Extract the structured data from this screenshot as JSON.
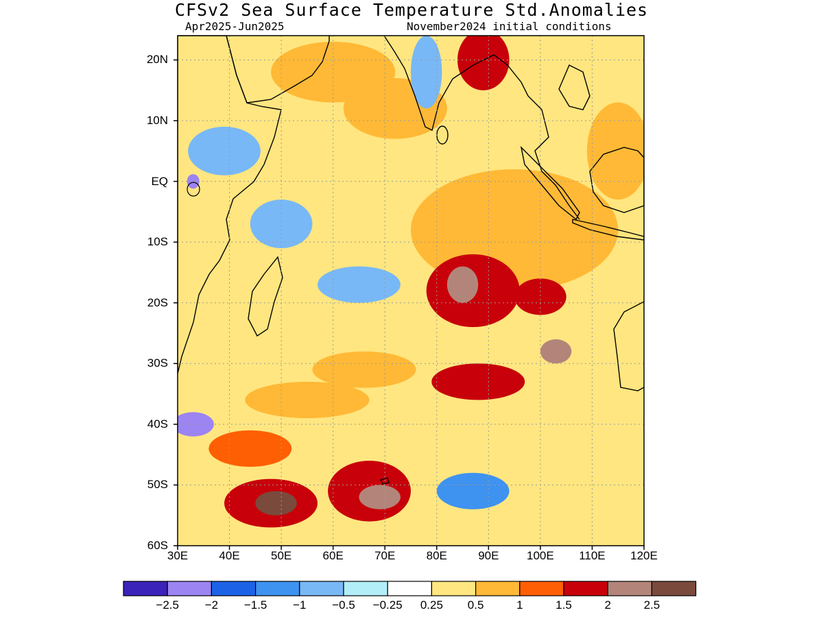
{
  "title": "CFSv2 Sea Surface Temperature Std.Anomalies",
  "subtitle_left": "Apr2025-Jun2025",
  "subtitle_right": "November2024 initial conditions",
  "map": {
    "region": "Indian Ocean",
    "lon_range": [
      30,
      120
    ],
    "lat_range": [
      -60,
      24
    ],
    "grid": "dotted"
  },
  "y_ticks": [
    "20N",
    "10N",
    "EQ",
    "10S",
    "20S",
    "30S",
    "40S",
    "50S",
    "60S"
  ],
  "x_ticks": [
    "30E",
    "40E",
    "50E",
    "60E",
    "70E",
    "80E",
    "90E",
    "100E",
    "110E",
    "120E"
  ],
  "colorbar": {
    "colors": [
      "#3b22b8",
      "#9c84f2",
      "#1c62e6",
      "#3e92f0",
      "#78b8f6",
      "#b2eef8",
      "#ffffff",
      "#ffe680",
      "#ffb936",
      "#ff5f04",
      "#c8000a",
      "#b3857a",
      "#7a4a3c"
    ],
    "labels": [
      "-2.5",
      "-2",
      "-1.5",
      "-1",
      "-0.5",
      "-0.25",
      "0.25",
      "0.5",
      "1",
      "1.5",
      "2",
      "2.5"
    ]
  },
  "anomaly_features": [
    {
      "lon": 95,
      "lat": -8,
      "rx": 20,
      "ry": 10,
      "value": 0.8
    },
    {
      "lon": 87,
      "lat": -18,
      "rx": 9,
      "ry": 6,
      "value": 1.8
    },
    {
      "lon": 85,
      "lat": -17,
      "rx": 3,
      "ry": 3,
      "value": 2.3
    },
    {
      "lon": 100,
      "lat": -19,
      "rx": 5,
      "ry": 3,
      "value": 1.7
    },
    {
      "lon": 103,
      "lat": -28,
      "rx": 3,
      "ry": 2,
      "value": 2.1
    },
    {
      "lon": 88,
      "lat": -33,
      "rx": 9,
      "ry": 3,
      "value": 1.6
    },
    {
      "lon": 72,
      "lat": 12,
      "rx": 10,
      "ry": 5,
      "value": 0.8
    },
    {
      "lon": 78,
      "lat": 18,
      "rx": 3,
      "ry": 6,
      "value": -1.0
    },
    {
      "lon": 39,
      "lat": 5,
      "rx": 7,
      "ry": 4,
      "value": -0.9
    },
    {
      "lon": 50,
      "lat": -7,
      "rx": 6,
      "ry": 4,
      "value": -0.8
    },
    {
      "lon": 65,
      "lat": -17,
      "rx": 8,
      "ry": 3,
      "value": -0.7
    },
    {
      "lon": 33,
      "lat": -40,
      "rx": 4,
      "ry": 2,
      "value": -2.4
    },
    {
      "lon": 87,
      "lat": -51,
      "rx": 7,
      "ry": 3,
      "value": -1.4
    },
    {
      "lon": 48,
      "lat": -53,
      "rx": 9,
      "ry": 4,
      "value": 1.8
    },
    {
      "lon": 49,
      "lat": -53,
      "rx": 4,
      "ry": 2,
      "value": 2.6
    },
    {
      "lon": 67,
      "lat": -51,
      "rx": 8,
      "ry": 5,
      "value": 1.8
    },
    {
      "lon": 69,
      "lat": -52,
      "rx": 4,
      "ry": 2,
      "value": 2.3
    },
    {
      "lon": 66,
      "lat": -31,
      "rx": 10,
      "ry": 3,
      "value": 0.9
    },
    {
      "lon": 55,
      "lat": -36,
      "rx": 12,
      "ry": 3,
      "value": 0.9
    },
    {
      "lon": 44,
      "lat": -44,
      "rx": 8,
      "ry": 3,
      "value": 1.2
    },
    {
      "lon": 115,
      "lat": 5,
      "rx": 6,
      "ry": 8,
      "value": 0.9
    },
    {
      "lon": 60,
      "lat": 18,
      "rx": 12,
      "ry": 5,
      "value": 0.9
    },
    {
      "lon": 89,
      "lat": 20,
      "rx": 5,
      "ry": 5,
      "value": 1.5
    },
    {
      "lon": 33,
      "lat": 0,
      "rx": 1.2,
      "ry": 1.2,
      "value": -2.3
    }
  ]
}
